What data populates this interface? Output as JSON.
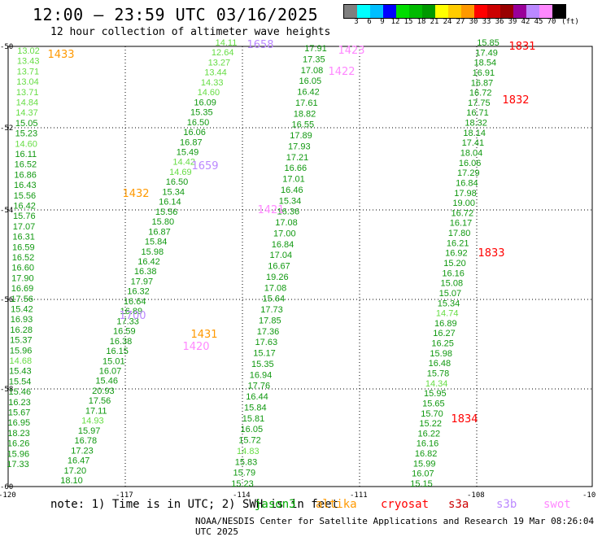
{
  "header": {
    "title": "12:00 – 23:59 UTC 03/16/2025",
    "subtitle": "12 hour collection of altimeter wave heights"
  },
  "legend": {
    "unit": "(ft)",
    "colors": [
      "#7f7f7f",
      "#00ffff",
      "#00bfff",
      "#0000ff",
      "#00dd00",
      "#00bb00",
      "#009900",
      "#ffff00",
      "#ffcc00",
      "#ff9900",
      "#ff0000",
      "#cc0000",
      "#990000",
      "#990099",
      "#bb88ff",
      "#ff88ff",
      "#000000"
    ],
    "labels": [
      "3",
      "6",
      "9",
      "12",
      "15",
      "18",
      "21",
      "24",
      "27",
      "30",
      "33",
      "36",
      "39",
      "42",
      "45",
      "70"
    ]
  },
  "axes": {
    "lat_labels": [
      "-50",
      "-52",
      "-54",
      "-56",
      "-58",
      "-60"
    ],
    "lon_labels": [
      "-120",
      "-117",
      "-114",
      "-111",
      "-108",
      "-10"
    ]
  },
  "tracks": [
    {
      "id": "1433",
      "pass_color": "#ff9900",
      "pass_pos": "t1",
      "values": [
        "13.02",
        "13.43",
        "13.71",
        "13.04",
        "13.71",
        "14.84",
        "14.37",
        "15.05",
        "15.23",
        "14.60",
        "16.11",
        "16.52",
        "16.86",
        "16.43",
        "15.56",
        "16.42",
        "15.76",
        "17.07",
        "16.31",
        "16.59",
        "16.52",
        "16.60",
        "17.90",
        "16.69",
        "17.56",
        "15.42",
        "16.93",
        "16.28",
        "15.37",
        "15.96",
        "14.68",
        "15.43",
        "15.54",
        "15.46",
        "16.23",
        "15.67",
        "16.95",
        "18.23",
        "16.26",
        "15.96",
        "17.33"
      ]
    },
    {
      "id": "1432",
      "pass_color": "#ff9900",
      "values": [
        "14.11",
        "12.64",
        "13.27",
        "13.44",
        "14.33",
        "14.60",
        "16.09",
        "15.35",
        "16.50",
        "16.06",
        "16.87",
        "15.49",
        "14.42",
        "14.69",
        "16.50",
        "15.34",
        "16.14",
        "15.56",
        "15.80",
        "16.87",
        "15.84",
        "15.98",
        "16.42",
        "16.38",
        "17.97",
        "16.32",
        "16.64",
        "16.89",
        "17.33",
        "16.59",
        "16.38",
        "16.15",
        "15.01",
        "16.07",
        "15.46",
        "20.93",
        "17.56",
        "17.11",
        "14.93",
        "15.97",
        "16.78",
        "17.23",
        "16.47",
        "17.20",
        "18.10"
      ]
    },
    {
      "id": "1423",
      "pass_color": "#ff88ff",
      "values": [
        "17.91",
        "17.35",
        "17.08",
        "16.05",
        "16.42",
        "17.61",
        "18.82",
        "16.55",
        "17.89",
        "17.93",
        "17.21",
        "16.66",
        "17.01",
        "16.46",
        "15.34",
        "16.36",
        "17.08",
        "17.00",
        "16.84",
        "17.04",
        "16.67",
        "19.26",
        "17.08",
        "15.64",
        "17.73",
        "17.85",
        "17.36",
        "17.63",
        "15.17",
        "15.35",
        "16.94",
        "17.76",
        "16.44",
        "15.84",
        "15.81",
        "16.05",
        "15.72",
        "14.83",
        "15.83",
        "15.79",
        "15.23"
      ]
    },
    {
      "id": "1831",
      "pass_color": "#ff0000",
      "values": [
        "15.85",
        "17.49",
        "18.54",
        "16.91",
        "16.87",
        "16.72",
        "17.75",
        "16.71",
        "18.32",
        "18.14",
        "17.41",
        "18.04",
        "16.06",
        "17.29",
        "16.84",
        "17.98",
        "19.00",
        "16.72",
        "16.17",
        "17.80",
        "16.21",
        "16.92",
        "15.20",
        "16.16",
        "15.08",
        "15.07",
        "15.34",
        "14.74",
        "16.89",
        "16.27",
        "16.25",
        "15.98",
        "16.48",
        "15.78",
        "14.34",
        "15.95",
        "15.65",
        "15.70",
        "15.22",
        "16.22",
        "16.16",
        "16.82",
        "15.99",
        "16.07",
        "15.15"
      ]
    }
  ],
  "pass_labels": [
    {
      "text": "1433",
      "color": "#ff9900"
    },
    {
      "text": "1658",
      "color": "#bb88ff"
    },
    {
      "text": "1423",
      "color": "#ff88ff"
    },
    {
      "text": "1422",
      "color": "#ff88ff"
    },
    {
      "text": "1831",
      "color": "#ff0000"
    },
    {
      "text": "1832",
      "color": "#ff0000"
    },
    {
      "text": "1659",
      "color": "#bb88ff"
    },
    {
      "text": "1432",
      "color": "#ff9900"
    },
    {
      "text": "1421",
      "color": "#ff88ff"
    },
    {
      "text": "1833",
      "color": "#ff0000"
    },
    {
      "text": "1700",
      "color": "#bb88ff"
    },
    {
      "text": "1431",
      "color": "#ff9900"
    },
    {
      "text": "1420",
      "color": "#ff88ff"
    },
    {
      "text": "1834",
      "color": "#ff0000"
    }
  ],
  "footer": {
    "note": "note:  1) Time is in UTC;  2) SWH is in feet",
    "satellites": [
      {
        "name": "jason3",
        "color": "#00aa00"
      },
      {
        "name": "altika",
        "color": "#ff9900"
      },
      {
        "name": "cryosat",
        "color": "#ff0000"
      },
      {
        "name": "s3a",
        "color": "#cc0000"
      },
      {
        "name": "s3b",
        "color": "#bb88ff"
      },
      {
        "name": "swot",
        "color": "#ff88ff"
      }
    ],
    "credit": "NOAA/NESDIS Center for Satellite Applications and Research    19 Mar 08:26:04 UTC 2025"
  }
}
